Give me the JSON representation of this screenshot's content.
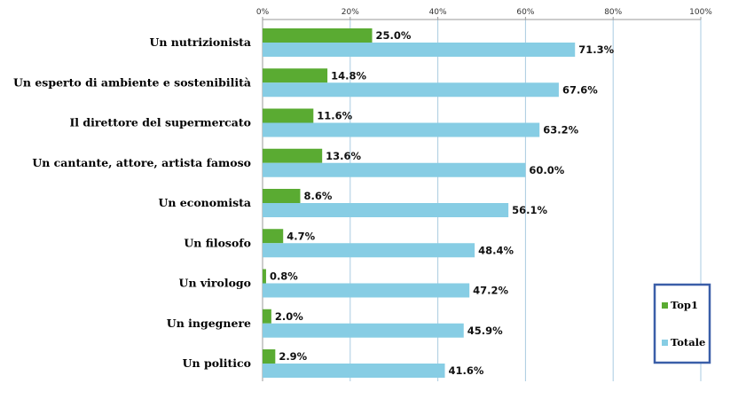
{
  "chart_data": {
    "type": "bar",
    "orientation": "horizontal",
    "categories": [
      "Un nutrizionista",
      "Un esperto di ambiente e sostenibilità",
      "Il direttore del supermercato",
      "Un cantante, attore, artista famoso",
      "Un economista",
      "Un filosofo",
      "Un virologo",
      "Un ingegnere",
      "Un politico"
    ],
    "series": [
      {
        "name": "Top1",
        "color": "#5aab32",
        "values": [
          25.0,
          14.8,
          11.6,
          13.6,
          8.6,
          4.7,
          0.8,
          2.0,
          2.9
        ]
      },
      {
        "name": "Totale",
        "color": "#87cde4",
        "values": [
          71.3,
          67.6,
          63.2,
          60.0,
          56.1,
          48.4,
          47.2,
          45.9,
          41.6
        ]
      }
    ],
    "xlim": [
      0,
      100
    ],
    "xticks": [
      "0%",
      "20%",
      "40%",
      "60%",
      "80%",
      "100%"
    ],
    "x_axis_position": "top",
    "grid": true,
    "legend_position": "bottom-right",
    "legend_border_color": "#3a5ea8"
  }
}
